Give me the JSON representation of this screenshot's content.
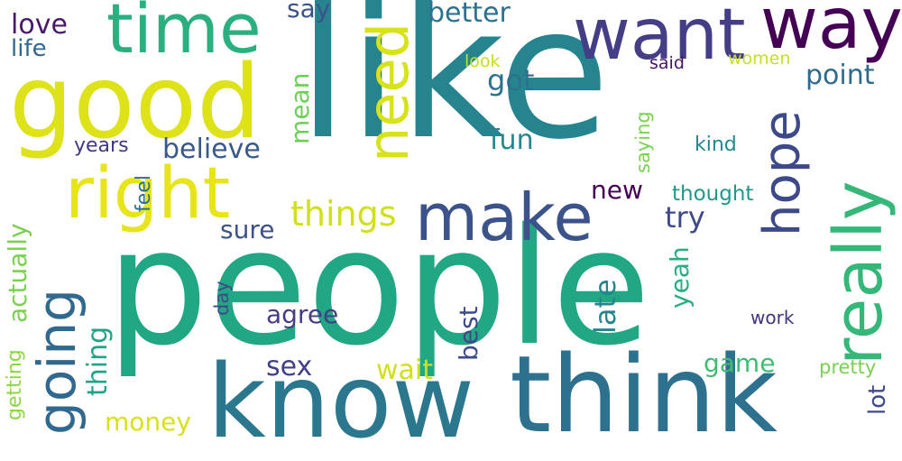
{
  "words": {
    "people": {
      "text": "people",
      "color": "#22a785"
    },
    "like": {
      "text": "like",
      "color": "#25848e"
    },
    "think": {
      "text": "think",
      "color": "#2d718e"
    },
    "know": {
      "text": "know",
      "color": "#2a778e"
    },
    "good": {
      "text": "good",
      "color": "#dde318"
    },
    "time": {
      "text": "time",
      "color": "#2ab07f"
    },
    "want": {
      "text": "want",
      "color": "#433e85"
    },
    "way": {
      "text": "way",
      "color": "#440154"
    },
    "make": {
      "text": "make",
      "color": "#3b528b"
    },
    "right": {
      "text": "right",
      "color": "#e7e419"
    },
    "really": {
      "text": "really",
      "color": "#35b779"
    },
    "need": {
      "text": "need",
      "color": "#d8e219"
    },
    "hope": {
      "text": "hope",
      "color": "#3e4989"
    },
    "going": {
      "text": "going",
      "color": "#31688e"
    },
    "things": {
      "text": "things",
      "color": "#d0e11c"
    },
    "better": {
      "text": "better",
      "color": "#2c728e"
    },
    "point": {
      "text": "point",
      "color": "#30698e"
    },
    "love": {
      "text": "love",
      "color": "#48186a"
    },
    "life": {
      "text": "life",
      "color": "#31688e"
    },
    "say": {
      "text": "say",
      "color": "#3b528b"
    },
    "got": {
      "text": "got",
      "color": "#2c728e"
    },
    "believe": {
      "text": "believe",
      "color": "#38598c"
    },
    "mean": {
      "text": "mean",
      "color": "#6ece58"
    },
    "years": {
      "text": "years",
      "color": "#453781"
    },
    "fun": {
      "text": "fun",
      "color": "#24878e"
    },
    "kind": {
      "text": "kind",
      "color": "#23888e"
    },
    "saying": {
      "text": "saying",
      "color": "#7ad151"
    },
    "look": {
      "text": "look",
      "color": "#c2df23"
    },
    "said": {
      "text": "said",
      "color": "#481467"
    },
    "women": {
      "text": "women",
      "color": "#c8e020"
    },
    "new": {
      "text": "new",
      "color": "#440154"
    },
    "thought": {
      "text": "thought",
      "color": "#1f988b"
    },
    "feel": {
      "text": "feel",
      "color": "#2e6e8e"
    },
    "try": {
      "text": "try",
      "color": "#3e4989"
    },
    "sure": {
      "text": "sure",
      "color": "#3b528b"
    },
    "actually": {
      "text": "actually",
      "color": "#7ad151"
    },
    "late": {
      "text": "late",
      "color": "#25858e"
    },
    "yeah": {
      "text": "yeah",
      "color": "#29af7f"
    },
    "agree": {
      "text": "agree",
      "color": "#433e85"
    },
    "best": {
      "text": "best",
      "color": "#3e4989"
    },
    "day": {
      "text": "day",
      "color": "#3e4989"
    },
    "thing": {
      "text": "thing",
      "color": "#20a386"
    },
    "sex": {
      "text": "sex",
      "color": "#424086"
    },
    "wait": {
      "text": "wait",
      "color": "#d0e11c"
    },
    "game": {
      "text": "game",
      "color": "#3fbc73"
    },
    "work": {
      "text": "work",
      "color": "#46337e"
    },
    "pretty": {
      "text": "pretty",
      "color": "#7ad151"
    },
    "lot": {
      "text": "lot",
      "color": "#3e4989"
    },
    "money": {
      "text": "money",
      "color": "#d8e219"
    },
    "getting": {
      "text": "getting",
      "color": "#8ed645"
    }
  }
}
